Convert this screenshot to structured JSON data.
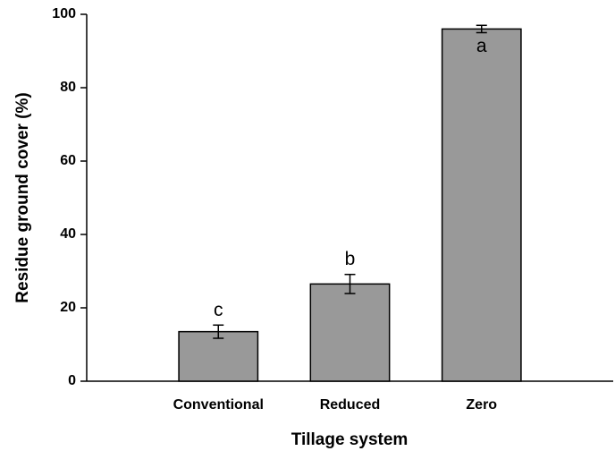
{
  "chart_data": {
    "type": "bar",
    "x_label": "Tillage system",
    "y_label": "Residue ground cover (%)",
    "categories": [
      "Conventional",
      "Reduced",
      "Zero"
    ],
    "values": [
      13.5,
      26.5,
      96
    ],
    "errors": [
      1.8,
      2.6,
      1.0
    ],
    "annotations": [
      "c",
      "b",
      "a"
    ],
    "color": "#999999",
    "ylim": [
      0,
      100
    ],
    "yticks": [
      0,
      20,
      40,
      60,
      80,
      100
    ]
  }
}
